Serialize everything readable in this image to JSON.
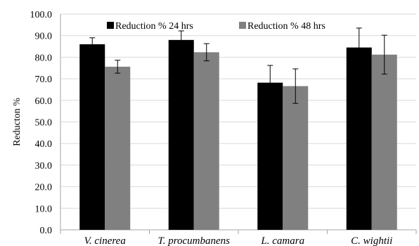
{
  "chart_data": {
    "type": "bar",
    "title": "",
    "xlabel": "",
    "ylabel": "Reducton %",
    "ylim": [
      0,
      100
    ],
    "ytick_step": 10,
    "ytick_labels": [
      "0.0",
      "10.0",
      "20.0",
      "30.0",
      "40.0",
      "50.0",
      "60.0",
      "70.0",
      "80.0",
      "90.0",
      "100.0"
    ],
    "categories": [
      "V. cinerea",
      "T. procumbanens",
      "L. camara",
      "C. wightii"
    ],
    "series": [
      {
        "name": "Reduction % 24 hrs",
        "color": "#000000",
        "values": [
          86.0,
          88.0,
          68.2,
          84.5
        ],
        "error": [
          3.0,
          4.2,
          8.0,
          9.0
        ]
      },
      {
        "name": "Reduction % 48 hrs",
        "color": "#808080",
        "values": [
          75.6,
          82.3,
          66.6,
          81.2
        ],
        "error": [
          3.0,
          4.0,
          8.0,
          9.0
        ]
      }
    ],
    "grid": "horizontal",
    "legend": "top-center"
  }
}
